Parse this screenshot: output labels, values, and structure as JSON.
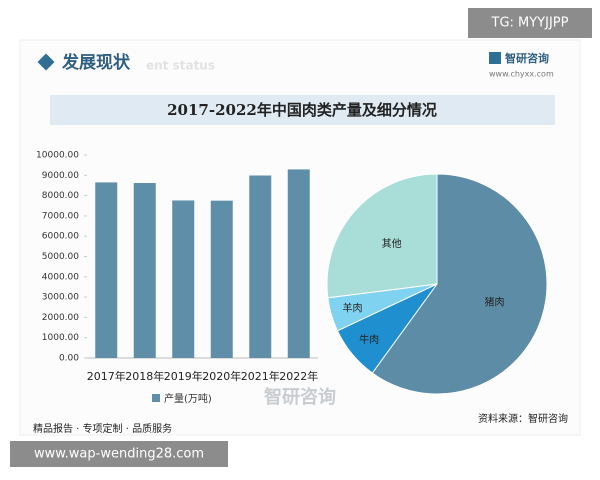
{
  "header": {
    "title": "发展现状",
    "subtitle": "ent status",
    "brand": "智研咨询",
    "site": "www.chyxx.com",
    "tag": "TG: MYYJJPP"
  },
  "banner": "2017-2022年中国肉类产量及细分情况",
  "chart_data": [
    {
      "type": "bar",
      "categories": [
        "2017年",
        "2018年",
        "2019年",
        "2020年",
        "2021年",
        "2022年"
      ],
      "series": [
        {
          "name": "产量(万吨)",
          "color": "#5f8fa8",
          "values": [
            8650,
            8620,
            7760,
            7750,
            8990,
            9290
          ]
        }
      ],
      "ylim": [
        0,
        10000
      ],
      "yticks": [
        {
          "value": 0,
          "label": "0.00"
        },
        {
          "value": 1000,
          "label": "1000.00"
        },
        {
          "value": 2000,
          "label": "2000.00"
        },
        {
          "value": 3000,
          "label": "3000.00"
        },
        {
          "value": 4000,
          "label": "4000.00"
        },
        {
          "value": 5000,
          "label": "5000.00"
        },
        {
          "value": 6000,
          "label": "6000.00"
        },
        {
          "value": 7000,
          "label": "7000.00"
        },
        {
          "value": 8000,
          "label": "8000.00"
        },
        {
          "value": 9000,
          "label": "9000.00"
        },
        {
          "value": 10000,
          "label": "10000.00"
        }
      ],
      "legend": "bottom"
    },
    {
      "type": "pie",
      "categories": [
        "猪肉",
        "牛肉",
        "羊肉",
        "其他"
      ],
      "values": [
        60,
        8,
        5,
        27
      ],
      "colors": [
        "#5c8ca6",
        "#1f8fd0",
        "#7fd2f0",
        "#a8ddd8"
      ]
    }
  ],
  "footer": {
    "slogan": "精品报告 · 专项定制 · 品质服务",
    "source": "资料来源：智研咨询",
    "watermark": "www.wap-wending28.com",
    "logo": "智研咨询"
  }
}
